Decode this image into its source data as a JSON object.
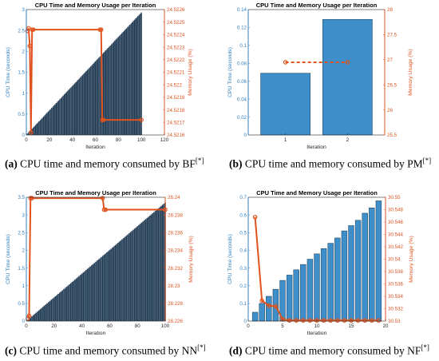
{
  "colors": {
    "bar": "#3d8ec9",
    "bar_dense": "#1f3b57",
    "bar_edge": "#0b2233",
    "mem": "#e0531f",
    "left_axis": "#2f7fc0",
    "right_axis": "#e0531f"
  },
  "captions": [
    {
      "label": "(a)",
      "text": "CPU time and memory consumed by BF",
      "sup": "[*]"
    },
    {
      "label": "(b)",
      "text": "CPU time and memory consumed by PM",
      "sup": "[*]"
    },
    {
      "label": "(c)",
      "text": "CPU time and memory consumed by NN",
      "sup": "[*]"
    },
    {
      "label": "(d)",
      "text": "CPU time and memory consumed by NF",
      "sup": "[*]"
    }
  ],
  "chart_data": [
    {
      "type": "bar",
      "title": "CPU Time and Memory Usage per Iteration",
      "xlabel": "Iteration",
      "ylabel": "CPU Time (seconds)",
      "y2label": "Memory Usage (%)",
      "xlim": [
        0,
        120
      ],
      "ylim": [
        0,
        3
      ],
      "y2lim": [
        24.5216,
        24.5226
      ],
      "xticks": [
        0,
        20,
        40,
        60,
        80,
        100,
        120
      ],
      "yticks": [
        "0",
        "0.5",
        "1",
        "1.5",
        "2",
        "2.5",
        "3"
      ],
      "y2ticks": [
        "24.5216",
        "24.5217",
        "24.5218",
        "24.5219",
        "24.522",
        "24.5221",
        "24.5222",
        "24.5223",
        "24.5224",
        "24.5225",
        "24.5226"
      ],
      "bars": {
        "x_start": 1,
        "x_end": 100,
        "y_start": 0.03,
        "y_end": 2.93
      },
      "series": [
        {
          "kind": "bar",
          "axis": "left",
          "values": "linear ramp 0.03 → 2.93 over iterations 1–100"
        },
        {
          "kind": "line",
          "axis": "right",
          "x": [
            1,
            2,
            3,
            4,
            5,
            6,
            64,
            65,
            66,
            67,
            100
          ],
          "y": [
            24.52243,
            24.52245,
            24.52231,
            24.52162,
            24.52244,
            24.52244,
            24.52244,
            24.52244,
            24.52172,
            24.52172,
            24.52172
          ]
        }
      ]
    },
    {
      "type": "bar",
      "title": "CPU Time and Memory Usage per Iteration",
      "xlabel": "Iteration",
      "ylabel": "CPU Time (seconds)",
      "y2label": "Memory Usage (%)",
      "xlim": [
        0.4,
        2.6
      ],
      "ylim": [
        0,
        0.14
      ],
      "y2lim": [
        25.5,
        28
      ],
      "xticks": [
        1,
        2
      ],
      "yticks": [
        "0",
        "0.02",
        "0.04",
        "0.06",
        "0.08",
        "0.1",
        "0.12",
        "0.14"
      ],
      "y2ticks": [
        "25.5",
        "26",
        "26.5",
        "27",
        "27.5",
        "28"
      ],
      "series": [
        {
          "kind": "bar",
          "axis": "left",
          "x": [
            1,
            2
          ],
          "y": [
            0.069,
            0.129
          ]
        },
        {
          "kind": "line",
          "axis": "right",
          "style": "dashed",
          "x": [
            1,
            2
          ],
          "y": [
            26.95,
            26.95
          ]
        }
      ]
    },
    {
      "type": "bar",
      "title": "CPU Time and Memory Usage per Iteration",
      "xlabel": "Iteration",
      "ylabel": "CPU Time (seconds)",
      "y2label": "Memory Usage (%)",
      "xlim": [
        0,
        100
      ],
      "ylim": [
        0,
        3.5
      ],
      "y2lim": [
        28.226,
        28.24
      ],
      "xticks": [
        0,
        20,
        40,
        60,
        80,
        100
      ],
      "yticks": [
        "0",
        "0.5",
        "1",
        "1.5",
        "2",
        "2.5",
        "3",
        "3.5"
      ],
      "y2ticks": [
        "28.226",
        "28.228",
        "28.23",
        "28.232",
        "28.234",
        "28.236",
        "28.238",
        "28.24"
      ],
      "bars": {
        "x_start": 1,
        "x_end": 100,
        "y_start": 0.03,
        "y_end": 3.35
      },
      "series": [
        {
          "kind": "bar",
          "axis": "left",
          "values": "linear ramp 0.03 → 3.35 over iterations 1–100"
        },
        {
          "kind": "line",
          "axis": "right",
          "x": [
            1,
            2,
            3,
            4,
            55,
            56,
            57,
            100
          ],
          "y": [
            28.2263,
            28.2266,
            28.2399,
            28.2399,
            28.2399,
            28.2386,
            28.2386,
            28.2386
          ]
        }
      ]
    },
    {
      "type": "bar",
      "title": "CPU Time and Memory Usage per Iteration",
      "xlabel": "Iteration",
      "ylabel": "CPU Time (seconds)",
      "y2label": "Memory Usage (%)",
      "xlim": [
        0,
        20
      ],
      "ylim": [
        0,
        0.7
      ],
      "y2lim": [
        30.53,
        30.55
      ],
      "xticks": [
        0,
        5,
        10,
        15,
        20
      ],
      "yticks": [
        "0",
        "0.1",
        "0.2",
        "0.3",
        "0.4",
        "0.5",
        "0.6",
        "0.7"
      ],
      "y2ticks": [
        "30.53",
        "30.532",
        "30.534",
        "30.536",
        "30.538",
        "30.54",
        "30.542",
        "30.544",
        "30.546",
        "30.548",
        "30.55"
      ],
      "series": [
        {
          "kind": "bar",
          "axis": "left",
          "x": [
            1,
            2,
            3,
            4,
            5,
            6,
            7,
            8,
            9,
            10,
            11,
            12,
            13,
            14,
            15,
            16,
            17,
            18,
            19
          ],
          "y": [
            0.05,
            0.1,
            0.14,
            0.18,
            0.23,
            0.26,
            0.29,
            0.32,
            0.35,
            0.38,
            0.41,
            0.44,
            0.47,
            0.51,
            0.54,
            0.57,
            0.61,
            0.64,
            0.68
          ]
        },
        {
          "kind": "line",
          "axis": "right",
          "x": [
            1,
            2,
            3,
            4,
            5,
            6,
            7,
            8,
            9,
            10,
            11,
            12,
            13,
            14,
            15,
            16,
            17,
            18,
            19
          ],
          "y": [
            30.5468,
            30.5333,
            30.5325,
            30.5324,
            30.5303,
            30.5301,
            30.5301,
            30.5301,
            30.5301,
            30.5301,
            30.5301,
            30.5301,
            30.5301,
            30.5301,
            30.5301,
            30.5301,
            30.5301,
            30.5301,
            30.5301
          ]
        }
      ]
    }
  ]
}
